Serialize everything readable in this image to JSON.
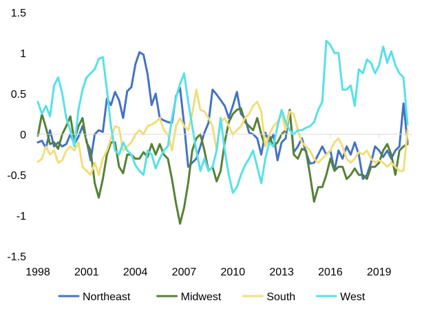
{
  "chart_data": {
    "type": "line",
    "title": "",
    "xlabel": "",
    "ylabel": "",
    "xlim": [
      1998,
      2021
    ],
    "ylim": [
      -1.5,
      1.5
    ],
    "y_ticks": [
      1.5,
      1,
      0.5,
      0,
      -0.5,
      -1,
      -1.5
    ],
    "y_tick_labels": [
      "1.5",
      "1",
      "0.5",
      "0",
      "-0.5",
      "-1",
      "-1.5"
    ],
    "x_ticks": [
      1998,
      2001,
      2004,
      2007,
      2010,
      2013,
      2016,
      2019
    ],
    "x_tick_labels": [
      "1998",
      "2001",
      "2004",
      "2007",
      "2010",
      "2013",
      "2016",
      "2019"
    ],
    "grid": false,
    "legend_position": "bottom",
    "series": [
      {
        "name": "Northeast",
        "color": "#4472C4",
        "x": [
          1998.0,
          1998.25,
          1998.5,
          1998.75,
          1999.0,
          1999.25,
          1999.5,
          1999.75,
          2000.0,
          2000.25,
          2000.5,
          2000.75,
          2001.0,
          2001.25,
          2001.5,
          2001.75,
          2002.0,
          2002.25,
          2002.5,
          2002.75,
          2003.0,
          2003.25,
          2003.5,
          2003.75,
          2004.0,
          2004.25,
          2004.5,
          2004.75,
          2005.0,
          2005.25,
          2005.5,
          2005.75,
          2006.0,
          2006.25,
          2006.5,
          2006.75,
          2007.0,
          2007.25,
          2007.5,
          2007.75,
          2008.0,
          2008.25,
          2008.5,
          2008.75,
          2009.0,
          2009.25,
          2009.5,
          2009.75,
          2010.0,
          2010.25,
          2010.5,
          2010.75,
          2011.0,
          2011.25,
          2011.5,
          2011.75,
          2012.0,
          2012.25,
          2012.5,
          2012.75,
          2013.0,
          2013.25,
          2013.5,
          2013.75,
          2014.0,
          2014.25,
          2014.5,
          2014.75,
          2015.0,
          2015.25,
          2015.5,
          2015.75,
          2016.0,
          2016.25,
          2016.5,
          2016.75,
          2017.0,
          2017.25,
          2017.5,
          2017.75,
          2018.0,
          2018.25,
          2018.5,
          2018.75,
          2019.0,
          2019.25,
          2019.5,
          2019.75,
          2020.0,
          2020.25,
          2020.5,
          2020.75
        ],
        "values": [
          -0.1,
          -0.08,
          -0.17,
          0.05,
          -0.15,
          -0.1,
          -0.15,
          -0.12,
          0.0,
          -0.12,
          -0.03,
          0.1,
          -0.08,
          -0.32,
          0.0,
          0.05,
          0.03,
          0.44,
          0.36,
          0.52,
          0.42,
          0.2,
          0.53,
          0.58,
          0.86,
          1.01,
          0.98,
          0.74,
          0.36,
          0.5,
          0.2,
          0.17,
          0.15,
          0.14,
          0.47,
          0.57,
          0.12,
          -0.4,
          -0.35,
          -0.3,
          -0.15,
          0.02,
          0.14,
          0.55,
          0.49,
          0.42,
          0.35,
          0.2,
          0.35,
          0.52,
          0.25,
          0.2,
          0.02,
          0.0,
          -0.05,
          -0.25,
          0.02,
          -0.1,
          0.0,
          -0.32,
          -0.1,
          -0.05,
          0.3,
          -0.22,
          -0.15,
          -0.05,
          -0.22,
          -0.36,
          -0.35,
          -0.25,
          -0.15,
          -0.25,
          -0.2,
          -0.45,
          -0.2,
          -0.3,
          -0.15,
          -0.25,
          -0.1,
          -0.25,
          -0.55,
          -0.5,
          -0.35,
          -0.15,
          -0.2,
          -0.28,
          -0.2,
          -0.3,
          -0.2,
          -0.15,
          0.38,
          -0.1
        ]
      },
      {
        "name": "Midwest",
        "color": "#548235",
        "x": [
          1998.0,
          1998.25,
          1998.5,
          1998.75,
          1999.0,
          1999.25,
          1999.5,
          1999.75,
          2000.0,
          2000.25,
          2000.5,
          2000.75,
          2001.0,
          2001.25,
          2001.5,
          2001.75,
          2002.0,
          2002.25,
          2002.5,
          2002.75,
          2003.0,
          2003.25,
          2003.5,
          2003.75,
          2004.0,
          2004.25,
          2004.5,
          2004.75,
          2005.0,
          2005.25,
          2005.5,
          2005.75,
          2006.0,
          2006.25,
          2006.5,
          2006.75,
          2007.0,
          2007.25,
          2007.5,
          2007.75,
          2008.0,
          2008.25,
          2008.5,
          2008.75,
          2009.0,
          2009.25,
          2009.5,
          2009.75,
          2010.0,
          2010.25,
          2010.5,
          2010.75,
          2011.0,
          2011.25,
          2011.5,
          2011.75,
          2012.0,
          2012.25,
          2012.5,
          2012.75,
          2013.0,
          2013.25,
          2013.5,
          2013.75,
          2014.0,
          2014.25,
          2014.5,
          2014.75,
          2015.0,
          2015.25,
          2015.5,
          2015.75,
          2016.0,
          2016.25,
          2016.5,
          2016.75,
          2017.0,
          2017.25,
          2017.5,
          2017.75,
          2018.0,
          2018.25,
          2018.5,
          2018.75,
          2019.0,
          2019.25,
          2019.5,
          2019.75,
          2020.0,
          2020.25,
          2020.5,
          2020.75
        ],
        "values": [
          -0.02,
          0.25,
          0.08,
          -0.12,
          -0.1,
          -0.18,
          0.0,
          0.1,
          0.22,
          -0.08,
          0.1,
          0.2,
          -0.1,
          -0.2,
          -0.6,
          -0.78,
          -0.55,
          -0.25,
          -0.1,
          -0.1,
          -0.4,
          -0.48,
          -0.25,
          -0.25,
          -0.3,
          -0.3,
          -0.22,
          -0.28,
          -0.12,
          -0.25,
          -0.12,
          -0.25,
          -0.3,
          -0.55,
          -0.85,
          -1.1,
          -0.9,
          -0.6,
          -0.2,
          -0.05,
          0.0,
          -0.2,
          -0.45,
          -0.4,
          -0.58,
          -0.45,
          -0.1,
          0.15,
          0.25,
          0.3,
          0.32,
          0.15,
          0.1,
          0.05,
          0.2,
          0.0,
          -0.15,
          -0.02,
          -0.15,
          -0.1,
          0.0,
          0.05,
          0.3,
          -0.25,
          -0.3,
          -0.18,
          -0.2,
          -0.5,
          -0.83,
          -0.65,
          -0.65,
          -0.5,
          -0.3,
          -0.45,
          -0.4,
          -0.4,
          -0.55,
          -0.5,
          -0.42,
          -0.5,
          -0.5,
          -0.55,
          -0.4,
          -0.4,
          -0.35,
          -0.2,
          -0.12,
          -0.25,
          -0.5,
          -0.2,
          -0.15,
          -0.12
        ]
      },
      {
        "name": "South",
        "color": "#F2DD7C",
        "x": [
          1998.0,
          1998.25,
          1998.5,
          1998.75,
          1999.0,
          1999.25,
          1999.5,
          1999.75,
          2000.0,
          2000.25,
          2000.5,
          2000.75,
          2001.0,
          2001.25,
          2001.5,
          2001.75,
          2002.0,
          2002.25,
          2002.5,
          2002.75,
          2003.0,
          2003.25,
          2003.5,
          2003.75,
          2004.0,
          2004.25,
          2004.5,
          2004.75,
          2005.0,
          2005.25,
          2005.5,
          2005.75,
          2006.0,
          2006.25,
          2006.5,
          2006.75,
          2007.0,
          2007.25,
          2007.5,
          2007.75,
          2008.0,
          2008.25,
          2008.5,
          2008.75,
          2009.0,
          2009.25,
          2009.5,
          2009.75,
          2010.0,
          2010.25,
          2010.5,
          2010.75,
          2011.0,
          2011.25,
          2011.5,
          2011.75,
          2012.0,
          2012.25,
          2012.5,
          2012.75,
          2013.0,
          2013.25,
          2013.5,
          2013.75,
          2014.0,
          2014.25,
          2014.5,
          2014.75,
          2015.0,
          2015.25,
          2015.5,
          2015.75,
          2016.0,
          2016.25,
          2016.5,
          2016.75,
          2017.0,
          2017.25,
          2017.5,
          2017.75,
          2018.0,
          2018.25,
          2018.5,
          2018.75,
          2019.0,
          2019.25,
          2019.5,
          2019.75,
          2020.0,
          2020.25,
          2020.5,
          2020.75
        ],
        "values": [
          -0.34,
          -0.3,
          -0.15,
          -0.25,
          -0.2,
          -0.35,
          -0.32,
          -0.2,
          -0.15,
          -0.2,
          -0.1,
          -0.4,
          -0.45,
          -0.5,
          -0.35,
          -0.5,
          -0.3,
          -0.2,
          -0.05,
          0.1,
          0.08,
          -0.2,
          -0.15,
          -0.1,
          0.0,
          0.05,
          0.0,
          0.1,
          0.12,
          0.15,
          0.2,
          0.05,
          0.0,
          -0.2,
          0.1,
          0.2,
          0.1,
          0.05,
          0.25,
          0.55,
          0.3,
          0.28,
          0.2,
          0.1,
          -0.2,
          0.15,
          0.2,
          0.1,
          0.0,
          0.05,
          0.1,
          0.2,
          0.25,
          0.35,
          0.4,
          0.28,
          -0.15,
          0.0,
          0.1,
          0.15,
          0.25,
          0.05,
          0.28,
          0.25,
          0.05,
          -0.1,
          -0.15,
          -0.2,
          -0.3,
          -0.35,
          -0.3,
          -0.25,
          -0.2,
          -0.1,
          -0.05,
          -0.15,
          -0.3,
          -0.35,
          -0.3,
          -0.22,
          -0.25,
          -0.2,
          -0.3,
          -0.35,
          -0.32,
          -0.35,
          -0.4,
          -0.35,
          -0.4,
          -0.45,
          -0.45,
          0.05
        ]
      },
      {
        "name": "West",
        "color": "#56E1E8",
        "x": [
          1998.0,
          1998.25,
          1998.5,
          1998.75,
          1999.0,
          1999.25,
          1999.5,
          1999.75,
          2000.0,
          2000.25,
          2000.5,
          2000.75,
          2001.0,
          2001.25,
          2001.5,
          2001.75,
          2002.0,
          2002.25,
          2002.5,
          2002.75,
          2003.0,
          2003.25,
          2003.5,
          2003.75,
          2004.0,
          2004.25,
          2004.5,
          2004.75,
          2005.0,
          2005.25,
          2005.5,
          2005.75,
          2006.0,
          2006.25,
          2006.5,
          2006.75,
          2007.0,
          2007.25,
          2007.5,
          2007.75,
          2008.0,
          2008.25,
          2008.5,
          2008.75,
          2009.0,
          2009.25,
          2009.5,
          2009.75,
          2010.0,
          2010.25,
          2010.5,
          2010.75,
          2011.0,
          2011.25,
          2011.5,
          2011.75,
          2012.0,
          2012.25,
          2012.5,
          2012.75,
          2013.0,
          2013.25,
          2013.5,
          2013.75,
          2014.0,
          2014.25,
          2014.5,
          2014.75,
          2015.0,
          2015.25,
          2015.5,
          2015.75,
          2016.0,
          2016.25,
          2016.5,
          2016.75,
          2017.0,
          2017.25,
          2017.5,
          2017.75,
          2018.0,
          2018.25,
          2018.5,
          2018.75,
          2019.0,
          2019.25,
          2019.5,
          2019.75,
          2020.0,
          2020.25,
          2020.5,
          2020.75
        ],
        "values": [
          0.4,
          0.25,
          0.35,
          0.22,
          0.6,
          0.7,
          0.5,
          0.2,
          0.05,
          -0.15,
          0.3,
          0.55,
          0.7,
          0.75,
          0.8,
          0.93,
          0.95,
          0.55,
          0.1,
          -0.2,
          -0.25,
          -0.1,
          -0.2,
          -0.25,
          -0.38,
          -0.45,
          -0.5,
          -0.2,
          -0.25,
          -0.42,
          -0.3,
          -0.2,
          -0.15,
          0.2,
          0.45,
          0.62,
          0.75,
          0.4,
          0.1,
          -0.2,
          -0.45,
          -0.3,
          -0.45,
          -0.4,
          -0.2,
          0.2,
          -0.2,
          -0.5,
          -0.72,
          -0.65,
          -0.5,
          -0.38,
          -0.3,
          -0.2,
          -0.4,
          -0.6,
          -0.3,
          -0.1,
          -0.15,
          0.1,
          0.3,
          0.15,
          0.05,
          0.0,
          0.05,
          0.05,
          0.08,
          0.1,
          0.15,
          0.3,
          0.4,
          1.15,
          1.1,
          1.0,
          1.0,
          0.55,
          0.55,
          0.6,
          0.35,
          0.8,
          0.75,
          0.92,
          0.88,
          0.75,
          0.85,
          1.08,
          0.88,
          1.02,
          0.85,
          0.75,
          0.7,
          0.12
        ]
      }
    ]
  }
}
